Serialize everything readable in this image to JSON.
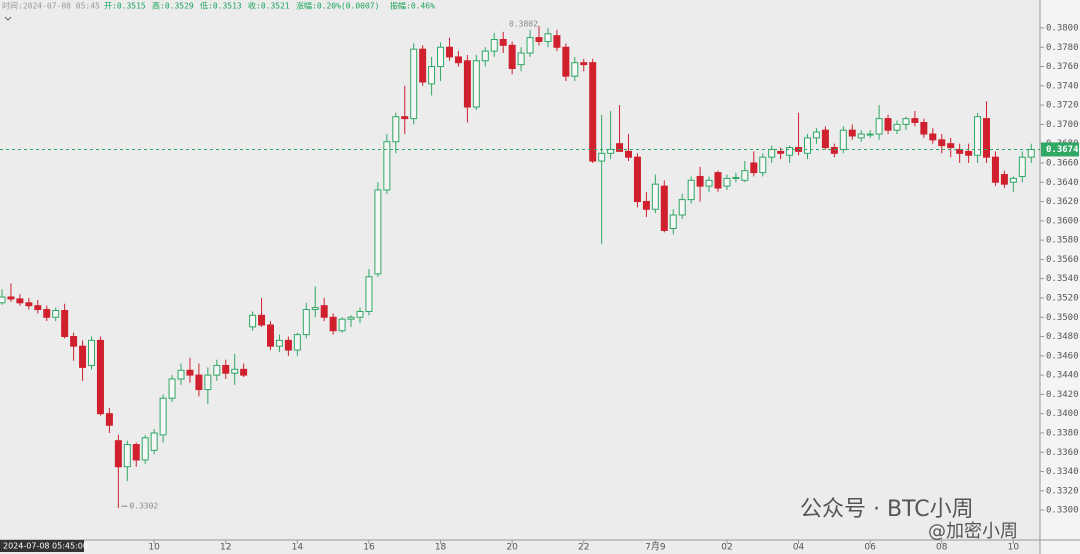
{
  "chart_data": {
    "type": "candlestick",
    "header": {
      "time": "时间:2024-07-08 05:45",
      "open": "开:0.3515",
      "high": "高:0.3529",
      "low": "低:0.3513",
      "close": "收:0.3521",
      "change": "涨幅:0.20%(0.0007)",
      "amplitude": "振幅:0.46%"
    },
    "crosshair_time": "2024-07-08 05:45:00",
    "watermark": [
      "公众号 · BTC小周",
      "@加密小周"
    ],
    "up_color": "#2fa864",
    "down_color": "#d0202e",
    "ylim": [
      0.3269,
      0.3829
    ],
    "yticks": [
      {
        "value": 0.33,
        "label": "0.3300"
      },
      {
        "value": 0.332,
        "label": "0.3320"
      },
      {
        "value": 0.334,
        "label": "0.3340"
      },
      {
        "value": 0.336,
        "label": "0.3360"
      },
      {
        "value": 0.338,
        "label": "0.3380"
      },
      {
        "value": 0.34,
        "label": "0.3400"
      },
      {
        "value": 0.342,
        "label": "0.3420"
      },
      {
        "value": 0.344,
        "label": "0.3440"
      },
      {
        "value": 0.346,
        "label": "0.3460"
      },
      {
        "value": 0.348,
        "label": "0.3480"
      },
      {
        "value": 0.35,
        "label": "0.3500"
      },
      {
        "value": 0.352,
        "label": "0.3520"
      },
      {
        "value": 0.354,
        "label": "0.3540"
      },
      {
        "value": 0.356,
        "label": "0.3560"
      },
      {
        "value": 0.358,
        "label": "0.3580"
      },
      {
        "value": 0.36,
        "label": "0.3600"
      },
      {
        "value": 0.362,
        "label": "0.3620"
      },
      {
        "value": 0.364,
        "label": "0.3640"
      },
      {
        "value": 0.366,
        "label": "0.3660"
      },
      {
        "value": 0.368,
        "label": "0.3680"
      },
      {
        "value": 0.37,
        "label": "0.3700"
      },
      {
        "value": 0.372,
        "label": "0.3720"
      },
      {
        "value": 0.374,
        "label": "0.3740"
      },
      {
        "value": 0.376,
        "label": "0.3760"
      },
      {
        "value": 0.378,
        "label": "0.3780"
      },
      {
        "value": 0.38,
        "label": "0.3800"
      }
    ],
    "categories": [
      null,
      null,
      null,
      null,
      null,
      null,
      null,
      null,
      null,
      null,
      null,
      null,
      null,
      null,
      null,
      null,
      null,
      "10",
      null,
      null,
      null,
      null,
      null,
      null,
      null,
      "12",
      null,
      null,
      null,
      null,
      null,
      null,
      null,
      "14",
      null,
      null,
      null,
      null,
      null,
      null,
      null,
      "16",
      null,
      null,
      null,
      null,
      null,
      null,
      null,
      "18",
      null,
      null,
      null,
      null,
      null,
      null,
      null,
      "20",
      null,
      null,
      null,
      null,
      null,
      null,
      null,
      "22",
      null,
      null,
      null,
      null,
      null,
      null,
      null,
      "7月9",
      null,
      null,
      null,
      null,
      null,
      null,
      null,
      "02",
      null,
      null,
      null,
      null,
      null,
      null,
      null,
      "04",
      null,
      null,
      null,
      null,
      null,
      null,
      null,
      "06",
      null,
      null,
      null,
      null,
      null,
      null,
      null,
      "08",
      null,
      null,
      null,
      null,
      null,
      null,
      null,
      "10",
      null,
      null
    ],
    "candles": [
      [
        0.3515,
        0.3529,
        0.3513,
        0.3521
      ],
      [
        0.3521,
        0.3535,
        0.3516,
        0.3519
      ],
      [
        0.3519,
        0.3524,
        0.3512,
        0.3515
      ],
      [
        0.3515,
        0.352,
        0.3508,
        0.3512
      ],
      [
        0.3512,
        0.3518,
        0.3504,
        0.3508
      ],
      [
        0.3508,
        0.3512,
        0.3496,
        0.35
      ],
      [
        0.35,
        0.351,
        0.3496,
        0.3507
      ],
      [
        0.3507,
        0.3514,
        0.3478,
        0.348
      ],
      [
        0.348,
        0.3484,
        0.3455,
        0.347
      ],
      [
        0.347,
        0.3476,
        0.3434,
        0.3448
      ],
      [
        0.345,
        0.348,
        0.3446,
        0.3476
      ],
      [
        0.3476,
        0.348,
        0.3398,
        0.34
      ],
      [
        0.34,
        0.3406,
        0.338,
        0.3388
      ],
      [
        0.3372,
        0.3378,
        0.3302,
        0.3345
      ],
      [
        0.3345,
        0.3372,
        0.333,
        0.3368
      ],
      [
        0.3368,
        0.337,
        0.3345,
        0.3352
      ],
      [
        0.3352,
        0.3378,
        0.3348,
        0.3375
      ],
      [
        0.3362,
        0.3384,
        0.3358,
        0.338
      ],
      [
        0.3378,
        0.342,
        0.337,
        0.3416
      ],
      [
        0.3416,
        0.344,
        0.3412,
        0.3436
      ],
      [
        0.3436,
        0.3452,
        0.343,
        0.3445
      ],
      [
        0.3445,
        0.3458,
        0.3432,
        0.344
      ],
      [
        0.344,
        0.3452,
        0.3418,
        0.3425
      ],
      [
        0.3425,
        0.3448,
        0.341,
        0.344
      ],
      [
        0.344,
        0.3456,
        0.3434,
        0.345
      ],
      [
        0.345,
        0.3456,
        0.3436,
        0.3442
      ],
      [
        0.3442,
        0.3462,
        0.343,
        0.3446
      ],
      [
        0.3446,
        0.3452,
        0.3438,
        0.344
      ],
      [
        0.349,
        0.3506,
        0.3486,
        0.3502
      ],
      [
        0.3502,
        0.352,
        0.349,
        0.3492
      ],
      [
        0.3492,
        0.3496,
        0.3466,
        0.347
      ],
      [
        0.347,
        0.3482,
        0.3464,
        0.3476
      ],
      [
        0.3476,
        0.348,
        0.346,
        0.3466
      ],
      [
        0.3466,
        0.3484,
        0.346,
        0.3482
      ],
      [
        0.3482,
        0.3515,
        0.3478,
        0.3508
      ],
      [
        0.3508,
        0.3532,
        0.35,
        0.351
      ],
      [
        0.3512,
        0.352,
        0.3496,
        0.35
      ],
      [
        0.35,
        0.3504,
        0.3482,
        0.3486
      ],
      [
        0.3486,
        0.35,
        0.3484,
        0.3498
      ],
      [
        0.3498,
        0.3502,
        0.349,
        0.35
      ],
      [
        0.35,
        0.351,
        0.3494,
        0.3506
      ],
      [
        0.3506,
        0.355,
        0.3502,
        0.3542
      ],
      [
        0.3545,
        0.364,
        0.3542,
        0.3632
      ],
      [
        0.3632,
        0.369,
        0.3628,
        0.3682
      ],
      [
        0.3682,
        0.3712,
        0.367,
        0.3708
      ],
      [
        0.3708,
        0.374,
        0.369,
        0.3706
      ],
      [
        0.3706,
        0.3784,
        0.37,
        0.3778
      ],
      [
        0.3778,
        0.3782,
        0.374,
        0.3744
      ],
      [
        0.3742,
        0.377,
        0.373,
        0.376
      ],
      [
        0.376,
        0.3785,
        0.3745,
        0.378
      ],
      [
        0.378,
        0.379,
        0.3766,
        0.377
      ],
      [
        0.377,
        0.3776,
        0.376,
        0.3764
      ],
      [
        0.3766,
        0.3772,
        0.3702,
        0.3718
      ],
      [
        0.3718,
        0.3772,
        0.3715,
        0.3766
      ],
      [
        0.3766,
        0.378,
        0.376,
        0.3776
      ],
      [
        0.3776,
        0.3795,
        0.377,
        0.3788
      ],
      [
        0.3788,
        0.3796,
        0.3774,
        0.3782
      ],
      [
        0.3782,
        0.3786,
        0.3752,
        0.3758
      ],
      [
        0.3762,
        0.378,
        0.3755,
        0.3774
      ],
      [
        0.3774,
        0.3798,
        0.377,
        0.379
      ],
      [
        0.379,
        0.3802,
        0.3782,
        0.3786
      ],
      [
        0.3786,
        0.38,
        0.378,
        0.3794
      ],
      [
        0.3792,
        0.3798,
        0.3776,
        0.378
      ],
      [
        0.378,
        0.3784,
        0.3745,
        0.375
      ],
      [
        0.375,
        0.377,
        0.3745,
        0.3764
      ],
      [
        0.3764,
        0.3768,
        0.3755,
        0.3762
      ],
      [
        0.3764,
        0.3768,
        0.366,
        0.3662
      ],
      [
        0.3662,
        0.371,
        0.3576,
        0.367
      ],
      [
        0.367,
        0.3714,
        0.3664,
        0.3674
      ],
      [
        0.368,
        0.372,
        0.3672,
        0.3672
      ],
      [
        0.3672,
        0.369,
        0.3662,
        0.3666
      ],
      [
        0.3666,
        0.367,
        0.3614,
        0.362
      ],
      [
        0.362,
        0.363,
        0.3604,
        0.3612
      ],
      [
        0.3612,
        0.3648,
        0.3608,
        0.3638
      ],
      [
        0.3636,
        0.3642,
        0.3588,
        0.359
      ],
      [
        0.3592,
        0.3612,
        0.3586,
        0.3606
      ],
      [
        0.3606,
        0.3628,
        0.3602,
        0.3622
      ],
      [
        0.3622,
        0.3646,
        0.3618,
        0.3642
      ],
      [
        0.3646,
        0.3656,
        0.362,
        0.3636
      ],
      [
        0.3636,
        0.3646,
        0.363,
        0.3642
      ],
      [
        0.365,
        0.3652,
        0.363,
        0.3634
      ],
      [
        0.3636,
        0.3648,
        0.3632,
        0.3644
      ],
      [
        0.3644,
        0.365,
        0.364,
        0.3645
      ],
      [
        0.3642,
        0.3662,
        0.364,
        0.3652
      ],
      [
        0.366,
        0.3672,
        0.3646,
        0.365
      ],
      [
        0.365,
        0.367,
        0.3646,
        0.3666
      ],
      [
        0.3666,
        0.3678,
        0.366,
        0.3674
      ],
      [
        0.3672,
        0.3676,
        0.3664,
        0.367
      ],
      [
        0.3668,
        0.3678,
        0.366,
        0.3676
      ],
      [
        0.3676,
        0.3712,
        0.3668,
        0.3672
      ],
      [
        0.367,
        0.369,
        0.3664,
        0.3686
      ],
      [
        0.3686,
        0.3696,
        0.368,
        0.3692
      ],
      [
        0.3694,
        0.3698,
        0.3674,
        0.3676
      ],
      [
        0.3676,
        0.368,
        0.3666,
        0.367
      ],
      [
        0.3674,
        0.3698,
        0.367,
        0.3694
      ],
      [
        0.3694,
        0.37,
        0.3684,
        0.3688
      ],
      [
        0.3686,
        0.3694,
        0.3682,
        0.369
      ],
      [
        0.369,
        0.3694,
        0.3686,
        0.369
      ],
      [
        0.369,
        0.372,
        0.3684,
        0.3706
      ],
      [
        0.3706,
        0.371,
        0.369,
        0.3694
      ],
      [
        0.3694,
        0.3704,
        0.369,
        0.37
      ],
      [
        0.37,
        0.3708,
        0.3694,
        0.3706
      ],
      [
        0.3706,
        0.3714,
        0.3698,
        0.3702
      ],
      [
        0.3702,
        0.3706,
        0.3686,
        0.369
      ],
      [
        0.369,
        0.3696,
        0.368,
        0.3684
      ],
      [
        0.3684,
        0.369,
        0.367,
        0.3678
      ],
      [
        0.368,
        0.3686,
        0.3666,
        0.3676
      ],
      [
        0.3674,
        0.368,
        0.366,
        0.367
      ],
      [
        0.3672,
        0.368,
        0.366,
        0.3668
      ],
      [
        0.3668,
        0.3712,
        0.366,
        0.3708
      ],
      [
        0.3706,
        0.3724,
        0.366,
        0.3666
      ],
      [
        0.3666,
        0.3672,
        0.3636,
        0.364
      ],
      [
        0.3648,
        0.3652,
        0.3634,
        0.3638
      ],
      [
        0.364,
        0.3646,
        0.363,
        0.3644
      ],
      [
        0.3646,
        0.3672,
        0.364,
        0.3666
      ],
      [
        0.3666,
        0.368,
        0.366,
        0.3674
      ]
    ],
    "max_index": 60,
    "min_index": 13
  }
}
